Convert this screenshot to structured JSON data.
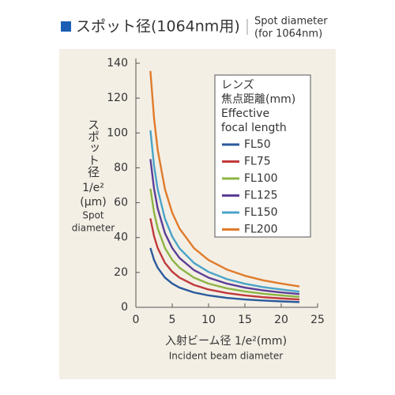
{
  "chart_data": {
    "type": "line",
    "title": "スポット径(1064nm用)",
    "title_en": [
      "Spot diameter",
      "(for 1064nm)"
    ],
    "ylabel_ja": "スポット径",
    "ylabel_unit": [
      "1/e²",
      "(μm)"
    ],
    "ylabel_en": [
      "Spot",
      "diameter"
    ],
    "xlabel": "入射ビーム径 1/e²(mm)",
    "xlabel_en": "Incident beam diameter",
    "legend_title": [
      "レンズ",
      "焦点距離(mm)",
      "Effective",
      "focal length"
    ],
    "xlim": [
      0,
      25
    ],
    "ylim": [
      0,
      140
    ],
    "xticks": [
      0,
      5,
      10,
      15,
      20,
      25
    ],
    "yticks": [
      0,
      20,
      40,
      60,
      80,
      100,
      120,
      140
    ],
    "x": [
      2,
      2.5,
      3,
      4,
      5,
      6,
      8,
      10,
      12.5,
      15,
      17.5,
      20,
      22.5
    ],
    "series": [
      {
        "name": "FL50",
        "color": "#2a5a9c",
        "values": [
          34,
          27.2,
          22.7,
          17,
          13.6,
          11.3,
          8.5,
          6.8,
          5.4,
          4.5,
          3.9,
          3.4,
          3.0
        ]
      },
      {
        "name": "FL75",
        "color": "#c0393b",
        "values": [
          51,
          40.8,
          34,
          25.5,
          20.4,
          17,
          12.8,
          10.2,
          8.2,
          6.8,
          5.8,
          5.1,
          4.5
        ]
      },
      {
        "name": "FL100",
        "color": "#8db444",
        "values": [
          68,
          54.4,
          45.3,
          34,
          27.2,
          22.7,
          17,
          13.6,
          10.9,
          9.1,
          7.8,
          6.8,
          6.0
        ]
      },
      {
        "name": "FL125",
        "color": "#5b3e96",
        "values": [
          85,
          68,
          56.7,
          42.5,
          34,
          28.3,
          21.3,
          17,
          13.6,
          11.3,
          9.7,
          8.5,
          7.6
        ]
      },
      {
        "name": "FL150",
        "color": "#4aa3c8",
        "values": [
          101.5,
          81.2,
          67.7,
          50.8,
          40.6,
          33.8,
          25.4,
          20.3,
          16.2,
          13.5,
          11.6,
          10.2,
          9.0
        ]
      },
      {
        "name": "FL200",
        "color": "#e07b2b",
        "values": [
          135.5,
          108.4,
          90.3,
          67.8,
          54.2,
          45.2,
          33.9,
          27.1,
          21.7,
          18.1,
          15.5,
          13.6,
          12.0
        ]
      }
    ]
  }
}
